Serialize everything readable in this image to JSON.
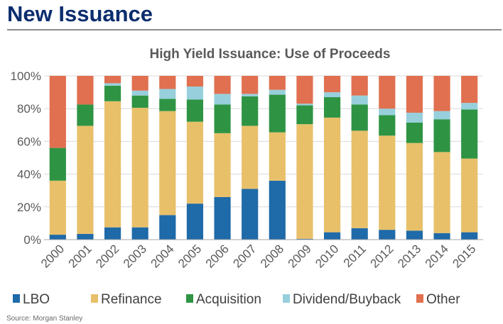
{
  "page": {
    "heading": "New Issuance",
    "source": "Source: Morgan Stanley"
  },
  "colors": {
    "LBO": "#1f6aa8",
    "Refinance": "#e8c06a",
    "Acquisition": "#2e9444",
    "Dividend/Buyback": "#98cfdc",
    "Other": "#e07050",
    "heading": "#0b2d6e",
    "gridline": "#d9d9d9",
    "axis": "#a6a6a6",
    "text": "#595959"
  },
  "chart_data": {
    "type": "bar",
    "stacked": true,
    "title": "High Yield Issuance: Use of Proceeds",
    "xlabel": "",
    "ylabel": "",
    "ylim": [
      0,
      100
    ],
    "yticks": [
      "0%",
      "20%",
      "40%",
      "60%",
      "80%",
      "100%"
    ],
    "grid": true,
    "legend_position": "bottom",
    "categories": [
      "2000",
      "2001",
      "2002",
      "2003",
      "2004",
      "2005",
      "2006",
      "2007",
      "2008",
      "2009",
      "2010",
      "2011",
      "2012",
      "2013",
      "2014",
      "2015"
    ],
    "series": [
      {
        "name": "LBO",
        "values": [
          3,
          3.5,
          7.5,
          7.5,
          15,
          22,
          26,
          31,
          36,
          0.5,
          4.5,
          7,
          6,
          5.5,
          4,
          4.5
        ]
      },
      {
        "name": "Refinance",
        "values": [
          33,
          66,
          77,
          73,
          63.5,
          50,
          39,
          38.5,
          29.5,
          70,
          70,
          59.5,
          57.5,
          53.5,
          49.5,
          45
        ]
      },
      {
        "name": "Acquisition",
        "values": [
          20,
          13,
          9.5,
          7.5,
          7.5,
          13.5,
          17.5,
          18,
          23,
          11.5,
          12.5,
          16,
          12.5,
          12.5,
          20,
          30
        ]
      },
      {
        "name": "Dividend/Buyback",
        "values": [
          0,
          0,
          1.5,
          3,
          6,
          8,
          6.5,
          1.5,
          3,
          1,
          3,
          5.5,
          4,
          6,
          5,
          4
        ]
      },
      {
        "name": "Other",
        "values": [
          44,
          17.5,
          4.5,
          9,
          8,
          6.5,
          11,
          11,
          8.5,
          17,
          10,
          12,
          20,
          22.5,
          21.5,
          16.5
        ]
      }
    ]
  }
}
